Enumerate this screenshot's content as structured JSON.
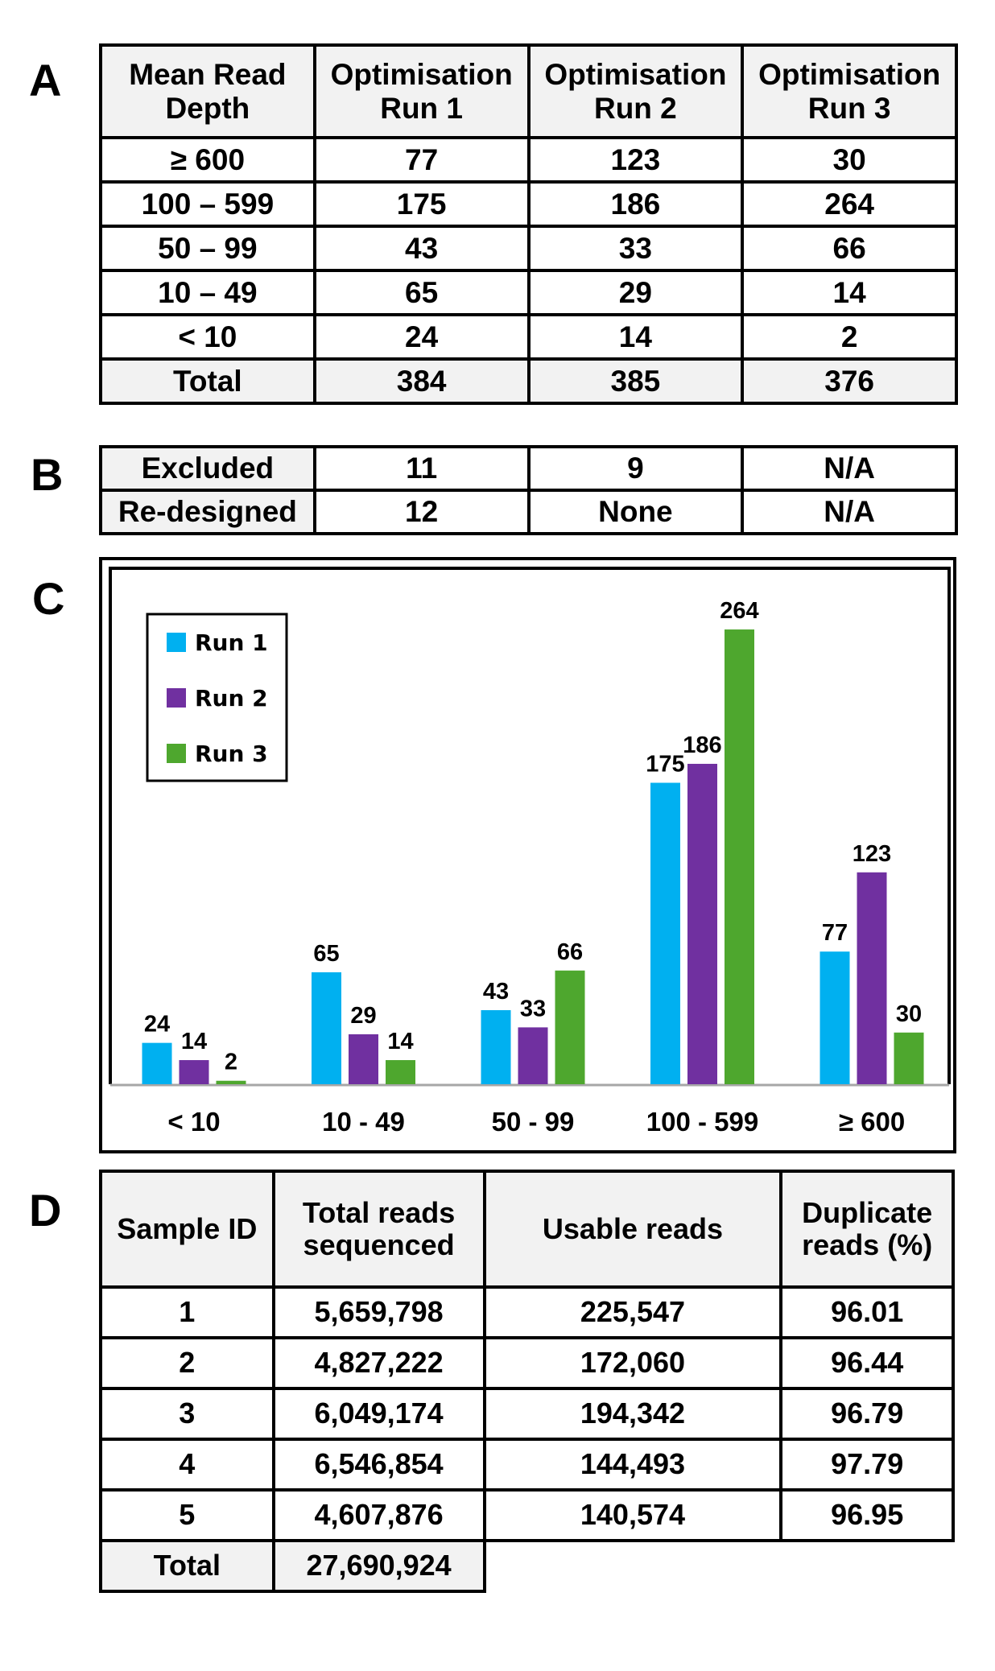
{
  "panels": {
    "a": "A",
    "b": "B",
    "c": "C",
    "d": "D"
  },
  "table_a": {
    "headers": [
      "Mean Read\nDepth",
      "Optimisation\nRun 1",
      "Optimisation\nRun 2",
      "Optimisation\nRun 3"
    ],
    "header_lines": [
      [
        "Mean Read",
        "Depth"
      ],
      [
        "Optimisation",
        "Run 1"
      ],
      [
        "Optimisation",
        "Run 2"
      ],
      [
        "Optimisation",
        "Run 3"
      ]
    ],
    "rows": [
      [
        "≥ 600",
        "77",
        "123",
        "30"
      ],
      [
        "100 – 599",
        "175",
        "186",
        "264"
      ],
      [
        "50 – 99",
        "43",
        "33",
        "66"
      ],
      [
        "10 – 49",
        "65",
        "29",
        "14"
      ],
      [
        "< 10",
        "24",
        "14",
        "2"
      ],
      [
        "Total",
        "384",
        "385",
        "376"
      ]
    ]
  },
  "table_b": {
    "rows": [
      [
        "Excluded",
        "11",
        "9",
        "N/A"
      ],
      [
        "Re-designed",
        "12",
        "None",
        "N/A"
      ]
    ]
  },
  "chart_data": {
    "type": "bar",
    "title": "",
    "xlabel": "",
    "ylabel": "",
    "categories": [
      "< 10",
      "10 - 49",
      "50 - 99",
      "100 - 599",
      "≥ 600"
    ],
    "series": [
      {
        "name": "Run 1",
        "color": "#00B0F0",
        "values": [
          24,
          65,
          43,
          175,
          77
        ]
      },
      {
        "name": "Run 2",
        "color": "#7030A0",
        "values": [
          14,
          29,
          33,
          186,
          123
        ]
      },
      {
        "name": "Run 3",
        "color": "#4EA72E",
        "values": [
          2,
          14,
          66,
          264,
          30
        ]
      }
    ],
    "ylim": [
      0,
      300
    ],
    "y_axis_visible": false,
    "grid": false,
    "data_labels": true,
    "legend_position": "top-left"
  },
  "table_d": {
    "header_lines": [
      [
        "Sample ID"
      ],
      [
        "Total reads",
        "sequenced"
      ],
      [
        "Usable reads"
      ],
      [
        "Duplicate",
        "reads (%)"
      ]
    ],
    "rows": [
      [
        "1",
        "5,659,798",
        "225,547",
        "96.01"
      ],
      [
        "2",
        "4,827,222",
        "172,060",
        "96.44"
      ],
      [
        "3",
        "6,049,174",
        "194,342",
        "96.79"
      ],
      [
        "4",
        "6,546,854",
        "144,493",
        "97.79"
      ],
      [
        "5",
        "4,607,876",
        "140,574",
        "96.95"
      ]
    ],
    "total": [
      "Total",
      "27,690,924"
    ]
  }
}
